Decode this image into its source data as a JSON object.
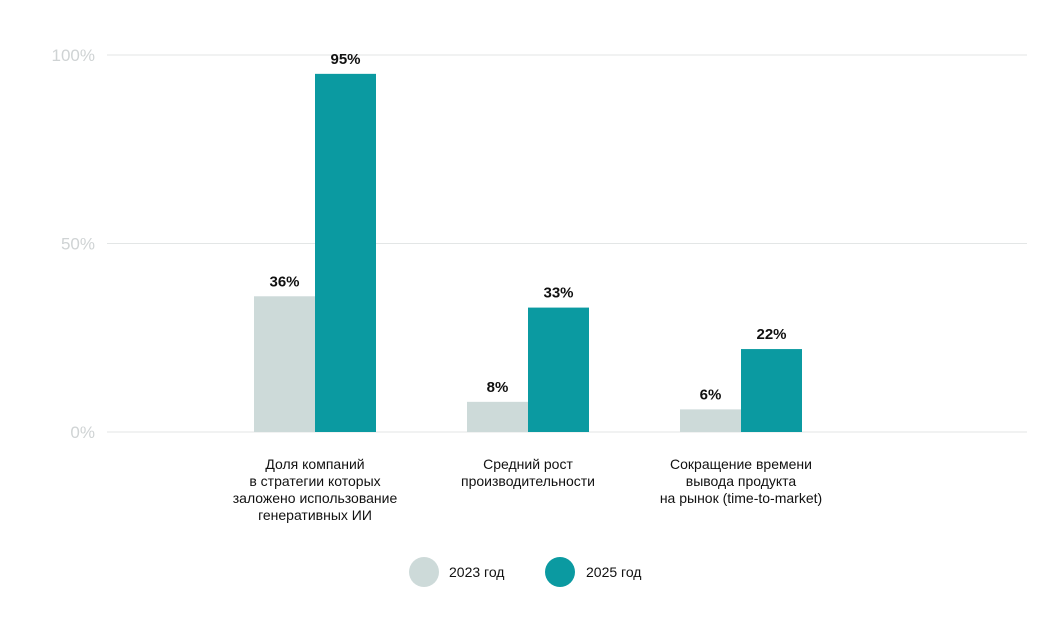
{
  "chart_data": {
    "type": "bar",
    "title": "",
    "xlabel": "",
    "ylabel": "",
    "ylim": [
      0,
      100
    ],
    "yticks": [
      0,
      50,
      100
    ],
    "ytick_labels": [
      "0%",
      "50%",
      "100%"
    ],
    "grid": true,
    "legend_position": "bottom-center",
    "categories": [
      [
        "Доля компаний",
        "в стратегии которых",
        "заложено использование",
        "генеративных ИИ"
      ],
      [
        "Средний рост",
        "производительности"
      ],
      [
        "Сокращение времени",
        "вывода продукта",
        "на рынок (time-to-market)"
      ]
    ],
    "series": [
      {
        "name": "2023 год",
        "color": "#cddad9",
        "values": [
          36,
          8,
          6
        ],
        "labels": [
          "36%",
          "8%",
          "6%"
        ]
      },
      {
        "name": "2025 год",
        "color": "#0b9aa1",
        "values": [
          95,
          33,
          22
        ],
        "labels": [
          "95%",
          "33%",
          "22%"
        ]
      }
    ]
  }
}
